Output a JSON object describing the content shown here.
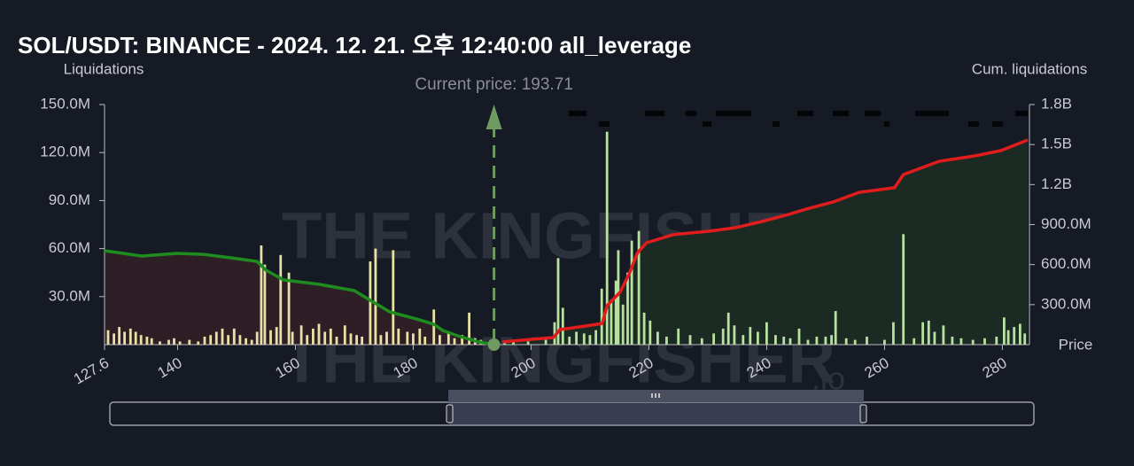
{
  "chart_data": {
    "type": "liquidation",
    "title": "SOL/USDT: BINANCE - 2024. 12. 21. 오후 12:40:00 all_leverage",
    "y_label": "Liquidations",
    "y2_label": "Cum. liquidations",
    "x_label": "Price",
    "watermark": "THE KINGFISHER",
    "watermark_suffix": ".io",
    "annotation": {
      "text": "Current price: 193.71",
      "x": 193.71,
      "color": "#6f9a62"
    },
    "xlim": [
      127.6,
      284.6
    ],
    "xticks": [
      127.6,
      140,
      160,
      180,
      200,
      220,
      240,
      260,
      280
    ],
    "ylim": [
      0,
      150000000
    ],
    "yticks": [
      {
        "value": 30000000,
        "label": "30.0M"
      },
      {
        "value": 60000000,
        "label": "60.0M"
      },
      {
        "value": 90000000,
        "label": "90.0M"
      },
      {
        "value": 120000000,
        "label": "120.0M"
      },
      {
        "value": 150000000,
        "label": "150.0M"
      }
    ],
    "y2lim": [
      0,
      1800000000
    ],
    "y2ticks": [
      {
        "value": 300000000,
        "label": "300.0M"
      },
      {
        "value": 600000000,
        "label": "600.0M"
      },
      {
        "value": 900000000,
        "label": "900.0M"
      },
      {
        "value": 1200000000,
        "label": "1.2B"
      },
      {
        "value": 1500000000,
        "label": "1.5B"
      },
      {
        "value": 1800000000,
        "label": "1.8B"
      }
    ],
    "bars": {
      "color_below": "#e6e2a6",
      "color_above": "#b8e0a0",
      "x": [
        128.2,
        129.2,
        130.1,
        131.0,
        132.0,
        132.9,
        133.8,
        134.8,
        135.6,
        137.0,
        138.5,
        139.4,
        140.4,
        142.0,
        143.5,
        144.6,
        145.6,
        146.6,
        147.6,
        148.6,
        149.6,
        150.6,
        151.6,
        152.6,
        153.5,
        154.2,
        154.8,
        155.8,
        156.8,
        157.5,
        158.9,
        159.5,
        161.0,
        162.0,
        163.0,
        164.0,
        165.0,
        166.0,
        167.0,
        168.4,
        169.4,
        170.4,
        171.3,
        172.7,
        173.6,
        174.5,
        175.5,
        176.6,
        177.5,
        179.0,
        180.0,
        181.1,
        182.0,
        183.5,
        184.5,
        186.0,
        187.0,
        188.3,
        189.5,
        190.5,
        191.5,
        195.5,
        197.0,
        199.5,
        202.5,
        204.0,
        204.6,
        205.4,
        206.5,
        207.7,
        209.0,
        210.0,
        211.0,
        212.0,
        212.9,
        213.6,
        214.4,
        214.8,
        215.6,
        216.4,
        217.1,
        218.3,
        219.2,
        220.2,
        221.5,
        223.0,
        225.0,
        227.0,
        229.0,
        231.0,
        232.6,
        233.5,
        234.5,
        236.0,
        237.2,
        238.5,
        240.0,
        241.5,
        242.9,
        244.0,
        245.5,
        247.0,
        248.5,
        250.0,
        251.0,
        251.7,
        253.5,
        255.0,
        257.0,
        260.0,
        261.5,
        263.2,
        265.0,
        266.5,
        267.5,
        268.5,
        270.0,
        271.5,
        273.0,
        275.0,
        277.0,
        279.0,
        280.3,
        281.0,
        282.0,
        283.0,
        283.8
      ],
      "values": [
        9000000,
        7000000,
        11000000,
        8000000,
        10000000,
        8000000,
        6000000,
        5000000,
        4000000,
        2000000,
        3000000,
        4000000,
        2000000,
        3000000,
        2000000,
        5000000,
        6000000,
        8000000,
        10000000,
        6000000,
        10000000,
        6000000,
        4000000,
        3000000,
        8000000,
        62000000,
        50000000,
        9000000,
        11000000,
        56000000,
        45000000,
        8000000,
        12000000,
        6000000,
        10000000,
        13000000,
        8000000,
        10000000,
        5000000,
        12000000,
        7000000,
        6000000,
        5000000,
        52000000,
        60000000,
        6000000,
        8000000,
        59000000,
        10000000,
        8000000,
        7000000,
        10000000,
        5000000,
        22000000,
        6000000,
        8000000,
        4000000,
        6000000,
        20000000,
        4000000,
        3000000,
        2000000,
        2000000,
        2000000,
        3000000,
        14000000,
        54000000,
        23000000,
        5000000,
        8000000,
        7000000,
        6000000,
        9000000,
        35000000,
        133000000,
        28000000,
        40000000,
        59000000,
        25000000,
        45000000,
        65000000,
        71000000,
        20000000,
        15000000,
        8000000,
        5000000,
        10000000,
        6000000,
        4000000,
        7000000,
        10000000,
        20000000,
        12000000,
        6000000,
        11000000,
        8000000,
        14000000,
        6000000,
        5000000,
        4000000,
        10000000,
        3000000,
        5000000,
        5000000,
        6000000,
        21000000,
        4000000,
        3000000,
        5000000,
        3000000,
        14000000,
        69000000,
        4000000,
        14000000,
        15000000,
        8000000,
        12000000,
        5000000,
        4000000,
        3000000,
        4000000,
        5000000,
        17000000,
        9000000,
        11000000,
        13000000,
        7000000
      ]
    },
    "lines": [
      {
        "axis": "y2",
        "color": "#1e8c1e",
        "fill": "#2e1e26",
        "x": [
          127.6,
          133.9,
          139.9,
          144.4,
          149.0,
          153.5,
          155.0,
          158.0,
          164.0,
          170.0,
          173.0,
          176.0,
          180.5,
          183.5,
          185.0,
          188.0,
          191.1,
          193.7
        ],
        "values": [
          704000000,
          664000000,
          684000000,
          677000000,
          651000000,
          624000000,
          558000000,
          485000000,
          452000000,
          405000000,
          325000000,
          246000000,
          193000000,
          153000000,
          106000000,
          60000000,
          20000000,
          0
        ]
      },
      {
        "axis": "y2",
        "color": "#e01c1c",
        "fill": "#1b2b24",
        "x": [
          195.1,
          200.1,
          203.8,
          204.9,
          209.1,
          212.1,
          212.9,
          215.1,
          216.6,
          218.1,
          219.6,
          224.1,
          230.2,
          234.7,
          239.2,
          243.7,
          246.7,
          251.2,
          255.7,
          261.7,
          263.2,
          269.3,
          275.3,
          279.8,
          284.3
        ],
        "values": [
          20000000,
          40000000,
          53000000,
          113000000,
          139000000,
          159000000,
          292000000,
          392000000,
          525000000,
          691000000,
          764000000,
          824000000,
          850000000,
          877000000,
          923000000,
          976000000,
          1016000000,
          1069000000,
          1142000000,
          1176000000,
          1275000000,
          1375000000,
          1415000000,
          1455000000,
          1534000000
        ]
      }
    ]
  }
}
